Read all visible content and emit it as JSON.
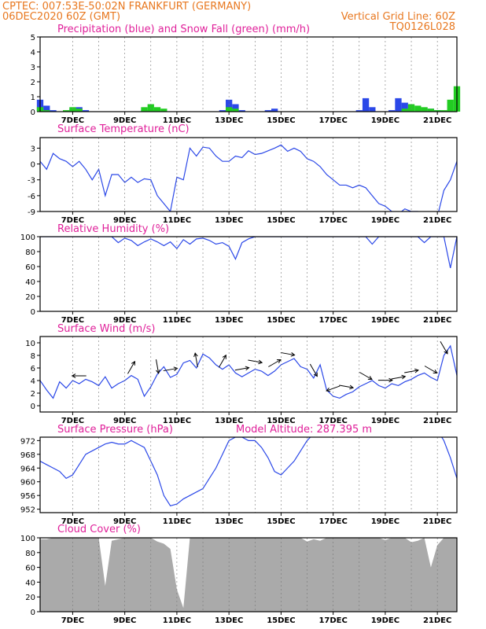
{
  "header": {
    "line1_left": "CPTEC:   007:53E-50:02N   FRANKFURT (GERMANY)",
    "line2_left": "06DEC2020 60Z (GMT)",
    "line2_right": "Vertical Grid Line: 60Z",
    "line3_right": "TQ0126L028"
  },
  "colors": {
    "header": "#e87820",
    "title": "#e0209a",
    "line": "#2b48e8",
    "snow": "#22cc22",
    "cloud": "#aaaaaa",
    "grid": "#777777"
  },
  "x_axis": {
    "day_ticks": [
      "7DEC",
      "9DEC",
      "11DEC",
      "13DEC",
      "15DEC",
      "17DEC",
      "19DEC",
      "21DEC"
    ]
  },
  "chart_data": [
    {
      "id": "precip",
      "type": "bar",
      "title": "Precipitation (blue) and Snow Fall (green) (mm/h)",
      "ylim": [
        0,
        5
      ],
      "yticks": [
        "0",
        "1",
        "2",
        "3",
        "4",
        "5"
      ],
      "x": [
        0,
        1,
        2,
        3,
        4,
        5,
        6,
        7,
        8,
        9,
        10,
        11,
        12,
        13,
        14,
        15,
        16,
        17,
        18,
        19,
        20,
        21,
        22,
        23,
        24,
        25,
        26,
        27,
        28,
        29,
        30,
        31,
        32,
        33,
        34,
        35,
        36,
        37,
        38,
        39,
        40,
        41,
        42,
        43,
        44,
        45,
        46,
        47,
        48,
        49,
        50,
        51,
        52,
        53,
        54,
        55,
        56,
        57,
        58,
        59,
        60,
        61,
        62,
        63,
        64
      ],
      "series": [
        {
          "name": "blue",
          "color": "#2b48e8",
          "values": [
            0.8,
            0.4,
            0.1,
            0,
            0,
            0.2,
            0.3,
            0.1,
            0,
            0,
            0,
            0,
            0,
            0,
            0,
            0,
            0.1,
            0.1,
            0,
            0,
            0,
            0,
            0,
            0,
            0,
            0,
            0,
            0,
            0.1,
            0.8,
            0.5,
            0.1,
            0,
            0,
            0,
            0.1,
            0.2,
            0,
            0,
            0,
            0,
            0,
            0,
            0,
            0,
            0,
            0,
            0,
            0,
            0.1,
            0.9,
            0.3,
            0,
            0,
            0.1,
            0.9,
            0.6,
            0,
            0,
            0,
            0.2,
            0.1,
            0,
            0,
            0
          ]
        },
        {
          "name": "green",
          "color": "#22cc22",
          "values": [
            0.3,
            0.1,
            0,
            0,
            0.1,
            0.3,
            0.2,
            0,
            0,
            0,
            0,
            0,
            0,
            0,
            0,
            0,
            0.3,
            0.5,
            0.3,
            0.2,
            0,
            0,
            0,
            0,
            0,
            0,
            0,
            0,
            0,
            0.3,
            0.2,
            0,
            0,
            0,
            0,
            0,
            0,
            0,
            0,
            0,
            0,
            0,
            0,
            0,
            0,
            0,
            0,
            0,
            0,
            0,
            0,
            0,
            0,
            0,
            0,
            0,
            0.2,
            0.5,
            0.4,
            0.3,
            0.2,
            0.1,
            0.1,
            0.8,
            1.7
          ]
        }
      ]
    },
    {
      "id": "temp",
      "type": "line",
      "title": "Surface Temperature (nC)",
      "ylim": [
        -9,
        5
      ],
      "yticks": [
        "-9",
        "-6",
        "-3",
        "0",
        "3"
      ],
      "x": [
        0,
        1,
        2,
        3,
        4,
        5,
        6,
        7,
        8,
        9,
        10,
        11,
        12,
        13,
        14,
        15,
        16,
        17,
        18,
        19,
        20,
        21,
        22,
        23,
        24,
        25,
        26,
        27,
        28,
        29,
        30,
        31,
        32,
        33,
        34,
        35,
        36,
        37,
        38,
        39,
        40,
        41,
        42,
        43,
        44,
        45,
        46,
        47,
        48,
        49,
        50,
        51,
        52,
        53,
        54,
        55,
        56,
        57,
        58,
        59,
        60,
        61,
        62,
        63,
        64
      ],
      "series": [
        {
          "name": "temperature",
          "color": "#2b48e8",
          "values": [
            0.5,
            -1.0,
            2.0,
            1.0,
            0.5,
            -0.5,
            0.5,
            -1.0,
            -3.0,
            -1.0,
            -6.0,
            -2.0,
            -2.0,
            -3.5,
            -2.5,
            -3.5,
            -2.8,
            -3.0,
            -6.0,
            -7.5,
            -9.0,
            -2.5,
            -3.0,
            3.0,
            1.5,
            3.2,
            3.0,
            1.5,
            0.5,
            0.5,
            1.5,
            1.2,
            2.5,
            1.8,
            2.0,
            2.5,
            3.0,
            3.6,
            2.4,
            3.0,
            2.4,
            1.0,
            0.5,
            -0.5,
            -2.0,
            -3.0,
            -4.0,
            -4.0,
            -4.5,
            -4.0,
            -4.5,
            -6.0,
            -7.5,
            -8.0,
            -9.0,
            -9.5,
            -8.5,
            -9.0,
            -9.0,
            -10.0,
            -11.0,
            -10.0,
            -5.0,
            -3.0,
            0.5
          ]
        }
      ]
    },
    {
      "id": "rh",
      "type": "line",
      "title": "Relative Humidity (%)",
      "ylim": [
        0,
        100
      ],
      "yticks": [
        "0",
        "20",
        "40",
        "60",
        "80",
        "100"
      ],
      "x": [
        0,
        1,
        2,
        3,
        4,
        5,
        6,
        7,
        8,
        9,
        10,
        11,
        12,
        13,
        14,
        15,
        16,
        17,
        18,
        19,
        20,
        21,
        22,
        23,
        24,
        25,
        26,
        27,
        28,
        29,
        30,
        31,
        32,
        33,
        34,
        35,
        36,
        37,
        38,
        39,
        40,
        41,
        42,
        43,
        44,
        45,
        46,
        47,
        48,
        49,
        50,
        51,
        52,
        53,
        54,
        55,
        56,
        57,
        58,
        59,
        60,
        61,
        62,
        63,
        64
      ],
      "series": [
        {
          "name": "humidity",
          "color": "#2b48e8",
          "values": [
            100,
            100,
            100,
            100,
            100,
            100,
            100,
            100,
            100,
            100,
            100,
            100,
            92,
            98,
            95,
            88,
            93,
            97,
            93,
            88,
            93,
            84,
            96,
            90,
            97,
            98,
            95,
            90,
            92,
            87,
            70,
            92,
            97,
            100,
            100,
            100,
            100,
            100,
            100,
            100,
            100,
            100,
            100,
            100,
            100,
            100,
            100,
            100,
            100,
            100,
            100,
            90,
            100,
            100,
            100,
            100,
            100,
            100,
            100,
            92,
            100,
            100,
            100,
            58,
            100
          ]
        }
      ]
    },
    {
      "id": "wind",
      "type": "line",
      "title": "Surface Wind (m/s)",
      "ylim": [
        -1,
        11
      ],
      "yticks": [
        "0",
        "2",
        "4",
        "6",
        "8",
        "10"
      ],
      "x": [
        0,
        1,
        2,
        3,
        4,
        5,
        6,
        7,
        8,
        9,
        10,
        11,
        12,
        13,
        14,
        15,
        16,
        17,
        18,
        19,
        20,
        21,
        22,
        23,
        24,
        25,
        26,
        27,
        28,
        29,
        30,
        31,
        32,
        33,
        34,
        35,
        36,
        37,
        38,
        39,
        40,
        41,
        42,
        43,
        44,
        45,
        46,
        47,
        48,
        49,
        50,
        51,
        52,
        53,
        54,
        55,
        56,
        57,
        58,
        59,
        60,
        61,
        62,
        63,
        64
      ],
      "series": [
        {
          "name": "wind speed",
          "color": "#2b48e8",
          "values": [
            4,
            2.5,
            1.2,
            3.8,
            2.8,
            4,
            3.5,
            4.2,
            3.8,
            3.2,
            4.6,
            2.8,
            3.5,
            4,
            4.8,
            4.2,
            1.5,
            3,
            5,
            6.2,
            4.5,
            5,
            6.8,
            7.2,
            6,
            8.2,
            7.6,
            6.5,
            5.8,
            6.5,
            5.2,
            4.6,
            5.2,
            5.8,
            5.5,
            4.8,
            5.5,
            6.5,
            7,
            7.5,
            6.2,
            5.8,
            4.4,
            6.5,
            2.5,
            1.5,
            1.2,
            1.8,
            2.2,
            3,
            3.5,
            4,
            3.2,
            2.8,
            3.5,
            3.2,
            3.8,
            4.2,
            4.8,
            5.2,
            4.5,
            4,
            8,
            9.5,
            4.8
          ]
        }
      ],
      "arrow_x": [
        6,
        14,
        18,
        20,
        24,
        28,
        31,
        33,
        36,
        38,
        42,
        45,
        47,
        50,
        53,
        55,
        57,
        60,
        62
      ],
      "arrow_angle_deg": [
        180,
        60,
        280,
        10,
        100,
        60,
        10,
        350,
        30,
        350,
        300,
        200,
        350,
        330,
        0,
        10,
        10,
        330,
        300
      ]
    },
    {
      "id": "pressure",
      "type": "line",
      "title": "Surface Pressure (hPa)",
      "annotation": "Model Altitude: 287.395 m",
      "ylim": [
        951,
        973
      ],
      "yticks": [
        "952",
        "956",
        "960",
        "964",
        "968",
        "972"
      ],
      "x": [
        0,
        1,
        2,
        3,
        4,
        5,
        6,
        7,
        8,
        9,
        10,
        11,
        12,
        13,
        14,
        15,
        16,
        17,
        18,
        19,
        20,
        21,
        22,
        23,
        24,
        25,
        26,
        27,
        28,
        29,
        30,
        31,
        32,
        33,
        34,
        35,
        36,
        37,
        38,
        39,
        40,
        41,
        42,
        43,
        44,
        45,
        46,
        47,
        48,
        49,
        50,
        51,
        52,
        53,
        54,
        55,
        56,
        57,
        58,
        59,
        60,
        61,
        62,
        63,
        64
      ],
      "series": [
        {
          "name": "pressure",
          "color": "#2b48e8",
          "values": [
            966,
            965,
            964,
            963,
            961,
            962,
            965,
            968,
            969,
            970,
            971,
            971.5,
            971,
            971,
            972,
            971,
            970,
            966,
            962,
            956,
            953,
            953.5,
            955,
            956,
            957,
            958,
            961,
            964,
            968,
            972,
            973,
            973,
            972,
            972,
            970,
            967,
            963,
            962,
            964,
            966,
            969,
            972,
            974,
            975,
            975,
            975,
            975,
            975,
            975,
            975,
            975,
            975,
            975,
            975,
            975,
            975,
            975,
            975,
            975,
            975,
            975,
            975,
            972,
            967,
            961
          ]
        }
      ]
    },
    {
      "id": "cloud",
      "type": "area",
      "title": "Cloud Cover (%)",
      "ylim": [
        0,
        100
      ],
      "yticks": [
        "0",
        "20",
        "40",
        "60",
        "80",
        "100"
      ],
      "x": [
        0,
        1,
        2,
        3,
        4,
        5,
        6,
        7,
        8,
        9,
        10,
        11,
        12,
        13,
        14,
        15,
        16,
        17,
        18,
        19,
        20,
        21,
        22,
        23,
        24,
        25,
        26,
        27,
        28,
        29,
        30,
        31,
        32,
        33,
        34,
        35,
        36,
        37,
        38,
        39,
        40,
        41,
        42,
        43,
        44,
        45,
        46,
        47,
        48,
        49,
        50,
        51,
        52,
        53,
        54,
        55,
        56,
        57,
        58,
        59,
        60,
        61,
        62,
        63,
        64
      ],
      "series": [
        {
          "name": "cloud cover",
          "color": "#aaaaaa",
          "values": [
            98,
            98,
            100,
            100,
            100,
            100,
            100,
            100,
            100,
            100,
            35,
            96,
            98,
            100,
            100,
            100,
            100,
            100,
            95,
            92,
            85,
            30,
            5,
            100,
            100,
            100,
            100,
            100,
            100,
            100,
            100,
            100,
            100,
            100,
            100,
            100,
            100,
            100,
            100,
            100,
            100,
            95,
            98,
            96,
            100,
            100,
            100,
            100,
            100,
            100,
            100,
            100,
            100,
            97,
            100,
            100,
            100,
            94,
            96,
            100,
            60,
            90,
            100,
            100,
            100
          ]
        }
      ]
    }
  ]
}
